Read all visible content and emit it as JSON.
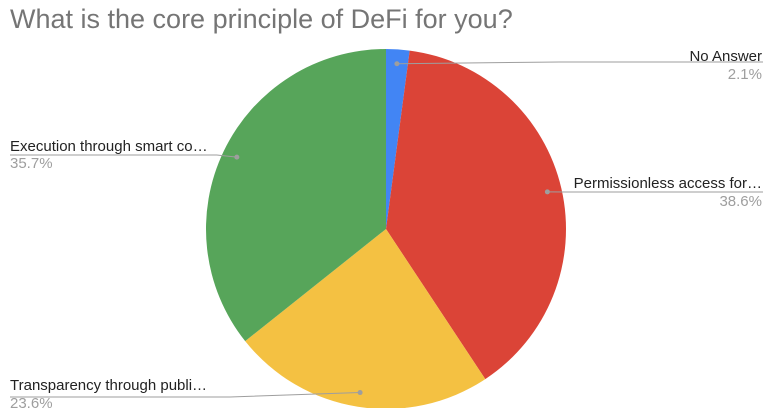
{
  "chart_data": {
    "type": "pie",
    "title": "What is the core principle of DeFi for you?",
    "start_angle_deg": 0,
    "direction": "clockwise",
    "slices": [
      {
        "label": "No Answer",
        "percent_label": "2.1%",
        "value": 2.1,
        "color": "#4285f4"
      },
      {
        "label": "Permissionless access for…",
        "percent_label": "38.6%",
        "value": 38.6,
        "color": "#db4437"
      },
      {
        "label": "Transparency through publi…",
        "percent_label": "23.6%",
        "value": 23.6,
        "color": "#f4c142"
      },
      {
        "label": "Execution through smart co…",
        "percent_label": "35.7%",
        "value": 35.7,
        "color": "#57a55a"
      }
    ],
    "label_color": "#222222",
    "percent_color": "#9e9e9e",
    "leader_color": "#9e9e9e"
  }
}
